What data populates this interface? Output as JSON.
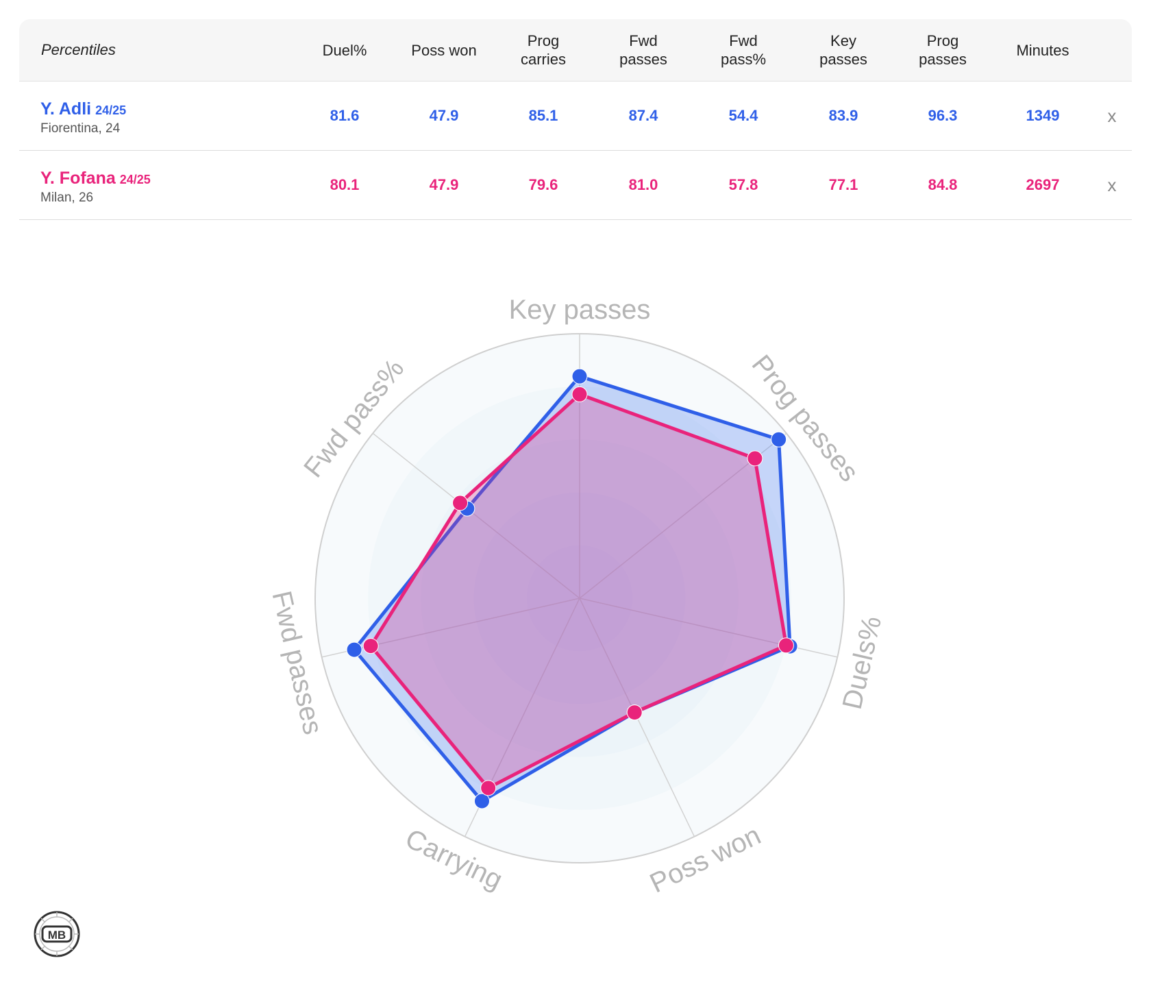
{
  "table": {
    "header_label": "Percentiles",
    "columns": [
      [
        "Duel%"
      ],
      [
        "Poss won"
      ],
      [
        "Prog",
        "carries"
      ],
      [
        "Fwd",
        "passes"
      ],
      [
        "Fwd",
        "pass%"
      ],
      [
        "Key",
        "passes"
      ],
      [
        "Prog",
        "passes"
      ],
      [
        "Minutes"
      ]
    ],
    "rows": [
      {
        "name": "Y. Adli",
        "season": "24/25",
        "club": "Fiorentina, 24",
        "color": "#2f5fe8",
        "values": [
          "81.6",
          "47.9",
          "85.1",
          "87.4",
          "54.4",
          "83.9",
          "96.3",
          "1349"
        ],
        "remove": "x"
      },
      {
        "name": "Y. Fofana",
        "season": "24/25",
        "club": "Milan, 26",
        "color": "#e9237b",
        "values": [
          "80.1",
          "47.9",
          "79.6",
          "81.0",
          "57.8",
          "77.1",
          "84.8",
          "2697"
        ],
        "remove": "x"
      }
    ]
  },
  "chart_data": {
    "type": "radar",
    "axes": [
      "Key passes",
      "Prog passes",
      "Duels%",
      "Poss won",
      "Carrying",
      "Fwd passes",
      "Fwd pass%"
    ],
    "range": [
      0,
      100
    ],
    "series": [
      {
        "name": "Y. Adli",
        "color": "#2f5fe8",
        "values": [
          83.9,
          96.3,
          81.6,
          47.9,
          85.1,
          87.4,
          54.4
        ]
      },
      {
        "name": "Y. Fofana",
        "color": "#e9237b",
        "values": [
          77.1,
          84.8,
          80.1,
          47.9,
          79.6,
          81.0,
          57.8
        ]
      }
    ]
  },
  "logo": {
    "text": "MB"
  }
}
